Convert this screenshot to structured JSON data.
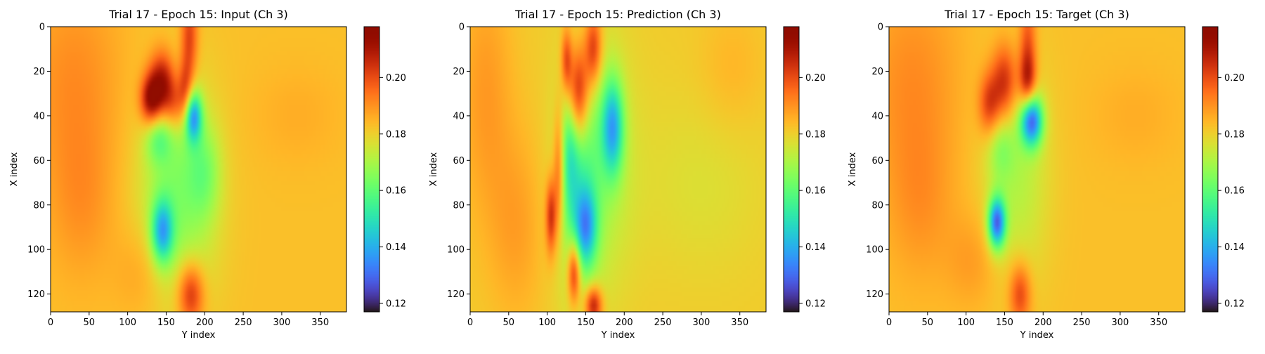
{
  "colormap": "turbo",
  "chart_data": [
    {
      "type": "heatmap",
      "title": "Trial 17 - Epoch 15: Input (Ch 3)",
      "xlabel": "Y index",
      "ylabel": "X index",
      "xlim": [
        0,
        384
      ],
      "ylim": [
        128,
        0
      ],
      "xticks": [
        "0",
        "50",
        "100",
        "150",
        "200",
        "250",
        "300",
        "350"
      ],
      "yticks": [
        "0",
        "20",
        "40",
        "60",
        "80",
        "100",
        "120"
      ],
      "colorbar": {
        "min": 0.117,
        "max": 0.218,
        "ticks": [
          "0.12",
          "0.14",
          "0.16",
          "0.18",
          "0.20"
        ]
      },
      "background": 0.183,
      "features": [
        {
          "x": 30,
          "y": 25,
          "sx": 45,
          "sy": 35,
          "a": 0.008
        },
        {
          "x": 40,
          "y": 80,
          "sx": 30,
          "sy": 25,
          "a": 0.006
        },
        {
          "x": 120,
          "y": 110,
          "sx": 25,
          "sy": 15,
          "a": 0.006
        },
        {
          "x": 320,
          "y": 40,
          "sx": 40,
          "sy": 15,
          "a": 0.003
        },
        {
          "x": 145,
          "y": 25,
          "sx": 12,
          "sy": 10,
          "a": 0.03
        },
        {
          "x": 130,
          "y": 33,
          "sx": 10,
          "sy": 8,
          "a": 0.03
        },
        {
          "x": 175,
          "y": 30,
          "sx": 7,
          "sy": 10,
          "a": 0.02
        },
        {
          "x": 180,
          "y": 5,
          "sx": 8,
          "sy": 15,
          "a": 0.02
        },
        {
          "x": 182,
          "y": 120,
          "sx": 12,
          "sy": 10,
          "a": 0.025
        },
        {
          "x": 160,
          "y": 35,
          "sx": 10,
          "sy": 8,
          "a": 0.015
        },
        {
          "x": 185,
          "y": 40,
          "sx": 8,
          "sy": 8,
          "a": -0.04
        },
        {
          "x": 145,
          "y": 92,
          "sx": 10,
          "sy": 10,
          "a": -0.035
        },
        {
          "x": 165,
          "y": 75,
          "sx": 35,
          "sy": 35,
          "a": -0.018
        },
        {
          "x": 200,
          "y": 65,
          "sx": 15,
          "sy": 15,
          "a": -0.012
        },
        {
          "x": 140,
          "y": 50,
          "sx": 12,
          "sy": 8,
          "a": -0.015
        }
      ]
    },
    {
      "type": "heatmap",
      "title": "Trial 17 - Epoch 15: Prediction (Ch 3)",
      "xlabel": "Y index",
      "ylabel": "X index",
      "xlim": [
        0,
        384
      ],
      "ylim": [
        128,
        0
      ],
      "xticks": [
        "0",
        "50",
        "100",
        "150",
        "200",
        "250",
        "300",
        "350"
      ],
      "yticks": [
        "0",
        "20",
        "40",
        "60",
        "80",
        "100",
        "120"
      ],
      "colorbar": {
        "min": 0.117,
        "max": 0.218,
        "ticks": [
          "0.12",
          "0.14",
          "0.16",
          "0.18",
          "0.20"
        ]
      },
      "background": 0.181,
      "features": [
        {
          "x": 20,
          "y": 30,
          "sx": 25,
          "sy": 40,
          "a": 0.008
        },
        {
          "x": 60,
          "y": 90,
          "sx": 25,
          "sy": 30,
          "a": 0.007
        },
        {
          "x": 300,
          "y": 70,
          "sx": 60,
          "sy": 30,
          "a": -0.004
        },
        {
          "x": 340,
          "y": 20,
          "sx": 30,
          "sy": 20,
          "a": 0.004
        },
        {
          "x": 140,
          "y": 30,
          "sx": 10,
          "sy": 15,
          "a": 0.035
        },
        {
          "x": 160,
          "y": 10,
          "sx": 8,
          "sy": 12,
          "a": 0.025
        },
        {
          "x": 115,
          "y": 65,
          "sx": 5,
          "sy": 20,
          "a": 0.02
        },
        {
          "x": 105,
          "y": 85,
          "sx": 5,
          "sy": 12,
          "a": 0.025
        },
        {
          "x": 135,
          "y": 110,
          "sx": 6,
          "sy": 10,
          "a": 0.03
        },
        {
          "x": 160,
          "y": 125,
          "sx": 8,
          "sy": 6,
          "a": 0.03
        },
        {
          "x": 125,
          "y": 15,
          "sx": 5,
          "sy": 10,
          "a": 0.02
        },
        {
          "x": 185,
          "y": 45,
          "sx": 10,
          "sy": 15,
          "a": -0.035
        },
        {
          "x": 150,
          "y": 90,
          "sx": 10,
          "sy": 12,
          "a": -0.03
        },
        {
          "x": 140,
          "y": 70,
          "sx": 20,
          "sy": 35,
          "a": -0.018
        },
        {
          "x": 170,
          "y": 60,
          "sx": 30,
          "sy": 40,
          "a": -0.01
        },
        {
          "x": 130,
          "y": 55,
          "sx": 8,
          "sy": 20,
          "a": -0.015
        }
      ]
    },
    {
      "type": "heatmap",
      "title": "Trial 17 - Epoch 15: Target (Ch 3)",
      "xlabel": "Y index",
      "ylabel": "X index",
      "xlim": [
        0,
        384
      ],
      "ylim": [
        128,
        0
      ],
      "xticks": [
        "0",
        "50",
        "100",
        "150",
        "200",
        "250",
        "300",
        "350"
      ],
      "yticks": [
        "0",
        "20",
        "40",
        "60",
        "80",
        "100",
        "120"
      ],
      "colorbar": {
        "min": 0.117,
        "max": 0.218,
        "ticks": [
          "0.12",
          "0.14",
          "0.16",
          "0.18",
          "0.20"
        ]
      },
      "background": 0.183,
      "features": [
        {
          "x": 30,
          "y": 25,
          "sx": 45,
          "sy": 35,
          "a": 0.008
        },
        {
          "x": 40,
          "y": 80,
          "sx": 30,
          "sy": 25,
          "a": 0.006
        },
        {
          "x": 110,
          "y": 105,
          "sx": 25,
          "sy": 15,
          "a": 0.006
        },
        {
          "x": 320,
          "y": 40,
          "sx": 40,
          "sy": 15,
          "a": 0.003
        },
        {
          "x": 150,
          "y": 25,
          "sx": 12,
          "sy": 12,
          "a": 0.025
        },
        {
          "x": 130,
          "y": 35,
          "sx": 10,
          "sy": 10,
          "a": 0.02
        },
        {
          "x": 180,
          "y": 25,
          "sx": 8,
          "sy": 10,
          "a": 0.025
        },
        {
          "x": 180,
          "y": 5,
          "sx": 8,
          "sy": 15,
          "a": 0.015
        },
        {
          "x": 170,
          "y": 120,
          "sx": 10,
          "sy": 10,
          "a": 0.02
        },
        {
          "x": 185,
          "y": 42,
          "sx": 10,
          "sy": 8,
          "a": -0.05
        },
        {
          "x": 140,
          "y": 88,
          "sx": 8,
          "sy": 8,
          "a": -0.05
        },
        {
          "x": 165,
          "y": 65,
          "sx": 30,
          "sy": 35,
          "a": -0.012
        },
        {
          "x": 145,
          "y": 55,
          "sx": 12,
          "sy": 10,
          "a": -0.01
        }
      ]
    }
  ]
}
